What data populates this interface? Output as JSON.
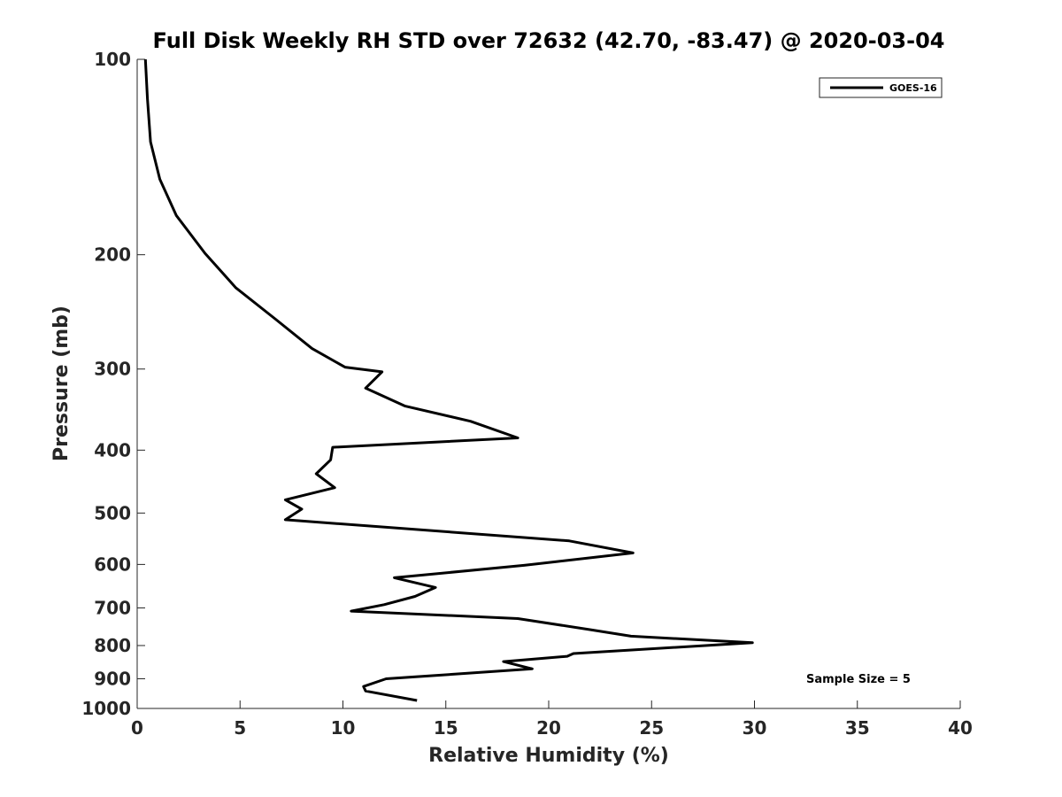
{
  "chart_data": {
    "type": "line",
    "title": "Full Disk Weekly RH STD over 72632 (42.70, -83.47) @ 2020-03-04",
    "xlabel": "Relative Humidity (%)",
    "ylabel": "Pressure (mb)",
    "xlim": [
      0,
      40
    ],
    "ylim": [
      1000,
      100
    ],
    "yscale": "log",
    "x_ticks": [
      "0",
      "5",
      "10",
      "15",
      "20",
      "25",
      "30",
      "35",
      "40"
    ],
    "y_ticks": [
      "100",
      "200",
      "300",
      "400",
      "500",
      "600",
      "700",
      "800",
      "900",
      "1000"
    ],
    "grid": false,
    "legend": {
      "position": "top-right",
      "entries": [
        "GOES-16"
      ]
    },
    "annotation": "Sample Size = 5",
    "series": [
      {
        "name": "GOES-16",
        "color": "#000000",
        "x": [
          0.4,
          0.5,
          0.65,
          1.1,
          1.9,
          3.3,
          4.8,
          6.7,
          8.5,
          10.1,
          11.9,
          11.1,
          13.0,
          16.2,
          18.5,
          9.5,
          9.4,
          8.7,
          9.6,
          7.2,
          8.0,
          7.2,
          21.0,
          24.1,
          18.8,
          12.5,
          14.5,
          13.5,
          12.0,
          10.4,
          18.5,
          22.0,
          24.0,
          29.9,
          21.2,
          20.9,
          17.8,
          19.2,
          12.1,
          11.0,
          11.1,
          13.6
        ],
        "y": [
          100,
          115,
          134,
          153,
          174,
          199,
          225,
          251,
          279,
          298,
          303,
          321,
          342,
          361,
          383,
          396,
          414,
          435,
          457,
          477,
          493,
          512,
          552,
          576,
          602,
          629,
          651,
          672,
          692,
          708,
          727,
          756,
          774,
          792,
          823,
          831,
          847,
          869,
          900,
          925,
          940,
          972
        ]
      }
    ]
  }
}
